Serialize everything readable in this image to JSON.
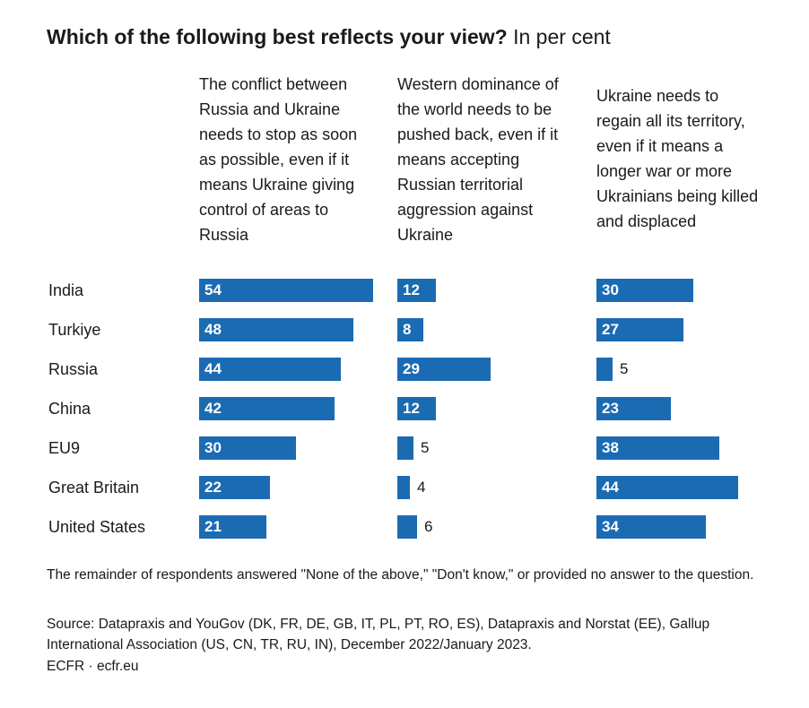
{
  "title": "Which of the following best reflects your view?",
  "subtitle": "In per cent",
  "chart_data": {
    "type": "bar",
    "categories": [
      "India",
      "Turkiye",
      "Russia",
      "China",
      "EU9",
      "Great Britain",
      "United States"
    ],
    "series": [
      {
        "name": "The conflict between Russia and Ukraine needs to stop as soon as possible, even if it means Ukraine giving control of areas to Russia",
        "values": [
          54,
          48,
          44,
          42,
          30,
          22,
          21
        ]
      },
      {
        "name": "Western dominance of the world needs to be pushed back, even if it means accepting Russian territorial aggression against Ukraine",
        "values": [
          12,
          8,
          29,
          12,
          5,
          4,
          6
        ]
      },
      {
        "name": "Ukraine needs to regain all its territory, even if it means a longer war or more Ukrainians being killed and displaced",
        "values": [
          30,
          27,
          5,
          23,
          38,
          44,
          34
        ]
      }
    ],
    "color": "#1b6bb3"
  },
  "footnote": "The remainder of respondents answered \"None of the above,\" \"Don't know,\" or provided no answer to the question.",
  "source": "Source: Datapraxis and YouGov (DK, FR, DE, GB, IT, PL, PT, RO, ES), Datapraxis and Norstat (EE), Gallup International Association (US, CN, TR, RU, IN), December 2022/January 2023.",
  "credit": "ECFR · ecfr.eu"
}
